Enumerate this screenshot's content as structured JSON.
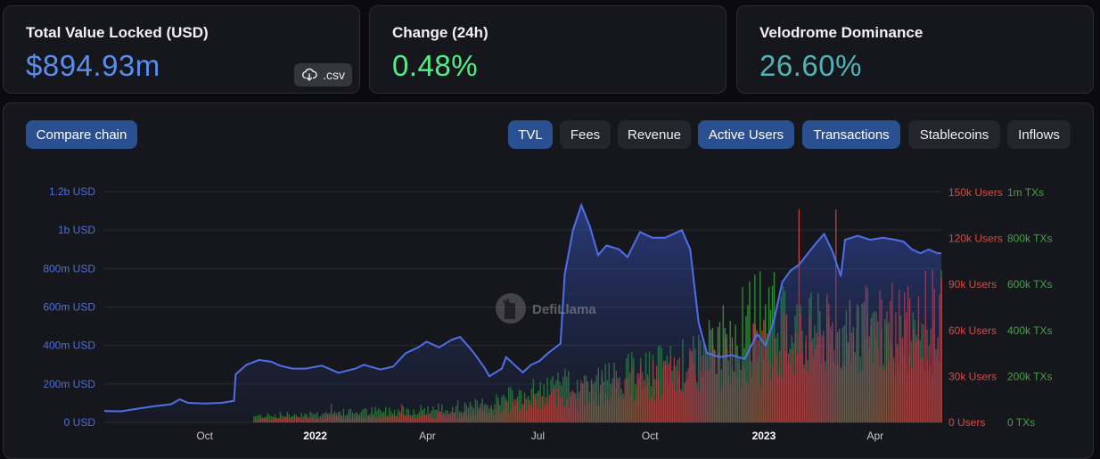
{
  "stats": [
    {
      "title": "Total Value Locked (USD)",
      "value": "$894.93m",
      "color": "#5b8def"
    },
    {
      "title": "Change (24h)",
      "value": "0.48%",
      "color": "#4ef087"
    },
    {
      "title": "Velodrome Dominance",
      "value": "26.60%",
      "color": "#4fb3b8"
    }
  ],
  "csv_label": ".csv",
  "compare_label": "Compare chain",
  "toggles": [
    {
      "label": "TVL",
      "active": true
    },
    {
      "label": "Fees",
      "active": false
    },
    {
      "label": "Revenue",
      "active": false
    },
    {
      "label": "Active Users",
      "active": true
    },
    {
      "label": "Transactions",
      "active": true
    },
    {
      "label": "Stablecoins",
      "active": false
    },
    {
      "label": "Inflows",
      "active": false
    }
  ],
  "watermark": "DefiLlama",
  "chart_data": {
    "type": "area",
    "tvl_color": "#4f6fe8",
    "users_color": "#e0423c",
    "tx_color": "#2f8a34",
    "left_axis": {
      "ticks": [
        "0 USD",
        "200m USD",
        "400m USD",
        "600m USD",
        "800m USD",
        "1b USD",
        "1.2b USD"
      ],
      "ylim": [
        0,
        1200000000
      ]
    },
    "right_axis_users": {
      "ticks": [
        "0 Users",
        "30k Users",
        "60k Users",
        "90k Users",
        "120k Users",
        "150k Users"
      ],
      "ylim": [
        0,
        150000
      ]
    },
    "right_axis_tx": {
      "ticks": [
        "0 TXs",
        "200k TXs",
        "400k TXs",
        "600k TXs",
        "800k TXs",
        "1m TXs"
      ],
      "ylim": [
        0,
        1000000
      ]
    },
    "x_ticks": [
      {
        "label": "Oct",
        "t": 0.12,
        "bold": false
      },
      {
        "label": "2022",
        "t": 0.252,
        "bold": true
      },
      {
        "label": "Apr",
        "t": 0.386,
        "bold": false
      },
      {
        "label": "Jul",
        "t": 0.518,
        "bold": false
      },
      {
        "label": "Oct",
        "t": 0.652,
        "bold": false
      },
      {
        "label": "2023",
        "t": 0.788,
        "bold": true
      },
      {
        "label": "Apr",
        "t": 0.921,
        "bold": false
      }
    ],
    "tvl_series": [
      [
        0.0,
        60
      ],
      [
        0.02,
        58
      ],
      [
        0.04,
        72
      ],
      [
        0.06,
        85
      ],
      [
        0.08,
        95
      ],
      [
        0.09,
        120
      ],
      [
        0.1,
        102
      ],
      [
        0.12,
        98
      ],
      [
        0.14,
        102
      ],
      [
        0.155,
        112
      ],
      [
        0.157,
        250
      ],
      [
        0.17,
        300
      ],
      [
        0.185,
        325
      ],
      [
        0.2,
        315
      ],
      [
        0.21,
        295
      ],
      [
        0.225,
        280
      ],
      [
        0.24,
        280
      ],
      [
        0.26,
        295
      ],
      [
        0.28,
        258
      ],
      [
        0.3,
        280
      ],
      [
        0.31,
        300
      ],
      [
        0.33,
        275
      ],
      [
        0.345,
        290
      ],
      [
        0.36,
        360
      ],
      [
        0.375,
        390
      ],
      [
        0.385,
        420
      ],
      [
        0.4,
        390
      ],
      [
        0.415,
        430
      ],
      [
        0.425,
        445
      ],
      [
        0.44,
        370
      ],
      [
        0.455,
        280
      ],
      [
        0.46,
        240
      ],
      [
        0.475,
        280
      ],
      [
        0.48,
        340
      ],
      [
        0.49,
        300
      ],
      [
        0.5,
        260
      ],
      [
        0.51,
        300
      ],
      [
        0.52,
        320
      ],
      [
        0.53,
        360
      ],
      [
        0.545,
        410
      ],
      [
        0.55,
        770
      ],
      [
        0.56,
        1000
      ],
      [
        0.57,
        1130
      ],
      [
        0.58,
        1020
      ],
      [
        0.59,
        870
      ],
      [
        0.6,
        920
      ],
      [
        0.615,
        900
      ],
      [
        0.625,
        860
      ],
      [
        0.64,
        990
      ],
      [
        0.655,
        960
      ],
      [
        0.67,
        960
      ],
      [
        0.68,
        980
      ],
      [
        0.69,
        1000
      ],
      [
        0.7,
        900
      ],
      [
        0.71,
        520
      ],
      [
        0.72,
        360
      ],
      [
        0.735,
        340
      ],
      [
        0.75,
        350
      ],
      [
        0.765,
        330
      ],
      [
        0.78,
        460
      ],
      [
        0.79,
        400
      ],
      [
        0.8,
        530
      ],
      [
        0.81,
        730
      ],
      [
        0.82,
        790
      ],
      [
        0.83,
        820
      ],
      [
        0.85,
        930
      ],
      [
        0.86,
        980
      ],
      [
        0.87,
        890
      ],
      [
        0.88,
        760
      ],
      [
        0.885,
        950
      ],
      [
        0.9,
        970
      ],
      [
        0.915,
        950
      ],
      [
        0.93,
        960
      ],
      [
        0.945,
        950
      ],
      [
        0.955,
        940
      ],
      [
        0.965,
        900
      ],
      [
        0.975,
        880
      ],
      [
        0.985,
        900
      ],
      [
        0.995,
        880
      ],
      [
        1.0,
        880
      ]
    ]
  }
}
